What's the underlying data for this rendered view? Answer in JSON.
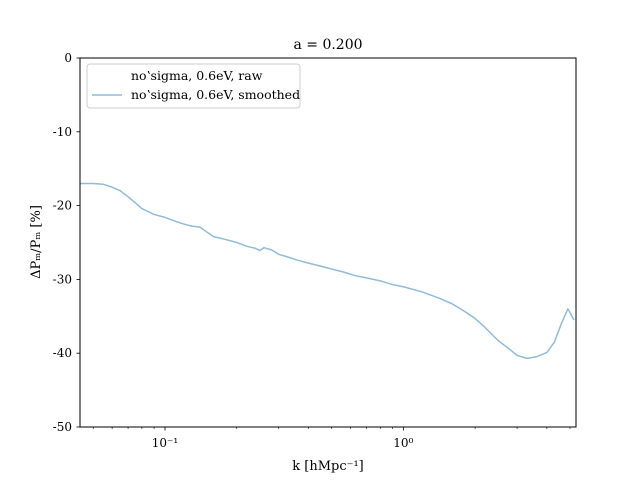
{
  "chart_data": {
    "type": "line",
    "title": "a = 0.200",
    "xlabel": "k [hMpc⁻¹]",
    "ylabel": "ΔPₘ/Pₘ [%]",
    "xscale": "log",
    "xlim": [
      0.044,
      5.3
    ],
    "ylim": [
      -50,
      0
    ],
    "xticks": [
      {
        "value": 0.1,
        "label": "10⁻¹"
      },
      {
        "value": 1.0,
        "label": "10⁰"
      }
    ],
    "yticks": [
      {
        "value": 0,
        "label": "0"
      },
      {
        "value": -10,
        "label": "-10"
      },
      {
        "value": -20,
        "label": "-20"
      },
      {
        "value": -30,
        "label": "-30"
      },
      {
        "value": -40,
        "label": "-40"
      },
      {
        "value": -50,
        "label": "-50"
      }
    ],
    "grid": false,
    "legend_position": "upper-left",
    "series": [
      {
        "name": "noʽsigma, 0.6eV, raw",
        "color": "#ffffff",
        "x": [],
        "y": []
      },
      {
        "name": "noʽsigma, 0.6eV, smoothed",
        "color": "#8fbcdb",
        "x": [
          0.044,
          0.05,
          0.055,
          0.06,
          0.065,
          0.07,
          0.075,
          0.08,
          0.09,
          0.1,
          0.11,
          0.12,
          0.13,
          0.14,
          0.15,
          0.16,
          0.18,
          0.2,
          0.22,
          0.24,
          0.25,
          0.26,
          0.28,
          0.3,
          0.33,
          0.36,
          0.4,
          0.45,
          0.5,
          0.56,
          0.63,
          0.7,
          0.8,
          0.9,
          1.0,
          1.2,
          1.4,
          1.6,
          1.8,
          2.0,
          2.2,
          2.5,
          2.8,
          3.0,
          3.3,
          3.6,
          4.0,
          4.3,
          4.6,
          4.9,
          5.2
        ],
        "y": [
          -17.0,
          -17.0,
          -17.1,
          -17.5,
          -18.0,
          -18.8,
          -19.6,
          -20.4,
          -21.2,
          -21.6,
          -22.1,
          -22.5,
          -22.8,
          -22.9,
          -23.6,
          -24.2,
          -24.6,
          -25.0,
          -25.5,
          -25.8,
          -26.1,
          -25.7,
          -26.0,
          -26.6,
          -27.0,
          -27.4,
          -27.8,
          -28.2,
          -28.6,
          -29.0,
          -29.5,
          -29.8,
          -30.2,
          -30.7,
          -31.0,
          -31.7,
          -32.5,
          -33.3,
          -34.3,
          -35.3,
          -36.5,
          -38.3,
          -39.5,
          -40.3,
          -40.7,
          -40.5,
          -39.9,
          -38.5,
          -36.0,
          -34.0,
          -35.5
        ]
      }
    ]
  }
}
